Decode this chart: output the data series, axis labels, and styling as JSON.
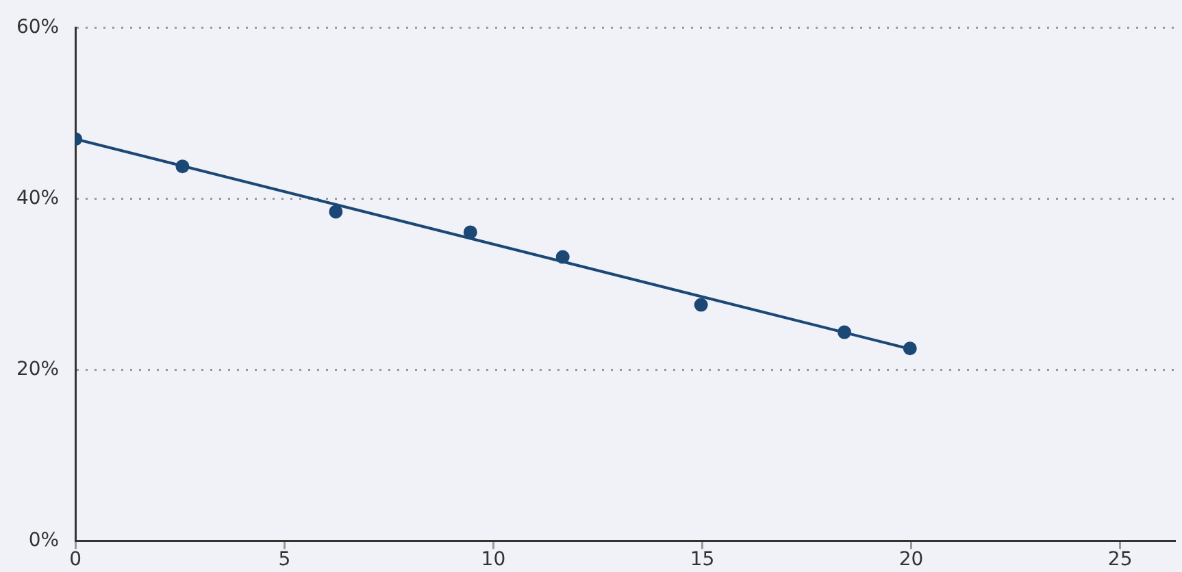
{
  "chart_data": {
    "type": "scatter",
    "x": [
      0,
      2.56,
      6.23,
      9.45,
      11.66,
      14.97,
      18.4,
      19.97
    ],
    "values": [
      47.0,
      43.8,
      38.5,
      36.1,
      33.2,
      27.6,
      24.4,
      22.5
    ],
    "color": "#1b4874",
    "marker": "circle",
    "series": [
      {
        "type": "line",
        "x": [
          0,
          20
        ],
        "values": [
          47,
          22.4
        ],
        "color": "#1b4874",
        "line_style": "solid",
        "marker": "none"
      }
    ],
    "xlim": [
      0,
      26.3
    ],
    "xticks": [
      0,
      5,
      10,
      15,
      20,
      25
    ],
    "ylim": [
      0,
      60
    ],
    "yticks": [
      {
        "value": 0,
        "label": "0%"
      },
      {
        "value": 20,
        "label": "20%"
      },
      {
        "value": 40,
        "label": "40%"
      },
      {
        "value": 60,
        "label": "60%"
      }
    ],
    "grid": "y",
    "legend": false
  }
}
